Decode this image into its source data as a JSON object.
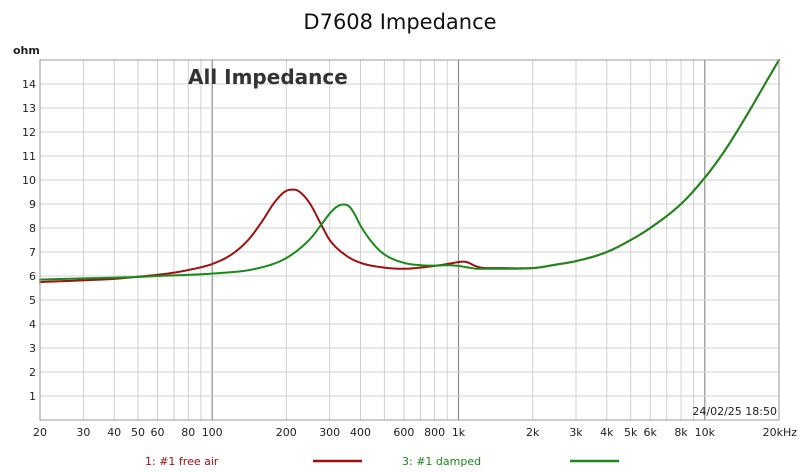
{
  "chart_data": {
    "type": "line",
    "title": "D7608 Impedance",
    "annotation": "All Impedance",
    "ylabel": "ohm",
    "timestamp": "24/02/25 18:50",
    "x_scale": "log",
    "xlim": [
      20,
      20000
    ],
    "ylim": [
      0,
      15
    ],
    "grid": true,
    "legend_position": "bottom",
    "x_ticks": [
      {
        "value": 20,
        "label": "20"
      },
      {
        "value": 30,
        "label": "30"
      },
      {
        "value": 40,
        "label": "40"
      },
      {
        "value": 50,
        "label": "50"
      },
      {
        "value": 60,
        "label": "60"
      },
      {
        "value": 80,
        "label": "80"
      },
      {
        "value": 100,
        "label": "100"
      },
      {
        "value": 200,
        "label": "200"
      },
      {
        "value": 300,
        "label": "300"
      },
      {
        "value": 400,
        "label": "400"
      },
      {
        "value": 600,
        "label": "600"
      },
      {
        "value": 800,
        "label": "800"
      },
      {
        "value": 1000,
        "label": "1k"
      },
      {
        "value": 2000,
        "label": "2k"
      },
      {
        "value": 3000,
        "label": "3k"
      },
      {
        "value": 4000,
        "label": "4k"
      },
      {
        "value": 5000,
        "label": "5k"
      },
      {
        "value": 6000,
        "label": "6k"
      },
      {
        "value": 8000,
        "label": "8k"
      },
      {
        "value": 10000,
        "label": "10k"
      },
      {
        "value": 20000,
        "label": "20kHz"
      }
    ],
    "y_ticks": [
      1,
      2,
      3,
      4,
      5,
      6,
      7,
      8,
      9,
      10,
      11,
      12,
      13,
      14
    ],
    "series": [
      {
        "name": "1: #1 free air",
        "color": "#a01010",
        "x": [
          20,
          30,
          40,
          50,
          60,
          70,
          80,
          100,
          120,
          140,
          160,
          180,
          200,
          215,
          230,
          250,
          280,
          300,
          350,
          400,
          500,
          600,
          700,
          800,
          900,
          1000,
          1050,
          1100,
          1150,
          1200,
          1300,
          1500,
          1700,
          2000,
          2500,
          3000,
          4000,
          5000,
          6000,
          8000,
          10000,
          12000,
          15000,
          18000,
          20000
        ],
        "values": [
          5.75,
          5.82,
          5.88,
          5.97,
          6.05,
          6.14,
          6.25,
          6.5,
          6.9,
          7.5,
          8.3,
          9.1,
          9.55,
          9.6,
          9.45,
          9.0,
          8.05,
          7.5,
          6.85,
          6.55,
          6.35,
          6.3,
          6.35,
          6.42,
          6.5,
          6.58,
          6.6,
          6.55,
          6.45,
          6.38,
          6.33,
          6.33,
          6.32,
          6.33,
          6.48,
          6.62,
          7.0,
          7.5,
          8.0,
          9.0,
          10.1,
          11.2,
          12.8,
          14.2,
          15.0
        ]
      },
      {
        "name": "3: #1 damped",
        "color": "#1a8a1a",
        "x": [
          20,
          30,
          40,
          50,
          60,
          80,
          100,
          150,
          200,
          250,
          280,
          300,
          320,
          340,
          360,
          380,
          400,
          450,
          500,
          600,
          700,
          800,
          900,
          1000,
          1100,
          1200,
          1500,
          2000,
          2500,
          3000,
          4000,
          5000,
          6000,
          8000,
          10000,
          12000,
          15000,
          18000,
          20000
        ],
        "values": [
          5.85,
          5.9,
          5.93,
          5.96,
          6.0,
          6.05,
          6.1,
          6.3,
          6.75,
          7.55,
          8.2,
          8.6,
          8.88,
          8.98,
          8.9,
          8.55,
          8.1,
          7.35,
          6.9,
          6.55,
          6.45,
          6.43,
          6.45,
          6.42,
          6.35,
          6.3,
          6.3,
          6.33,
          6.48,
          6.62,
          7.0,
          7.5,
          8.0,
          9.0,
          10.1,
          11.2,
          12.8,
          14.2,
          15.0
        ]
      }
    ]
  }
}
